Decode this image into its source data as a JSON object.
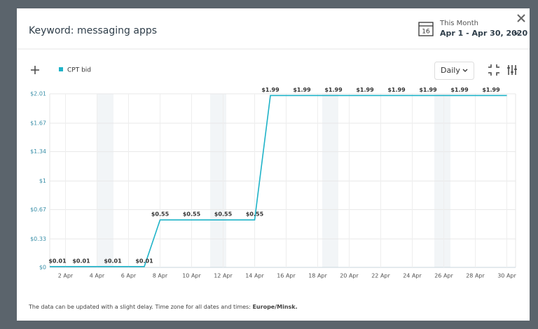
{
  "header": {
    "title": "Keyword: messaging apps",
    "period": "This Month",
    "range": "Apr 1 - Apr 30, 2020",
    "calendar_day": "16"
  },
  "controls": {
    "interval": "Daily"
  },
  "chart_data": {
    "type": "line",
    "categories": [
      null,
      "2 Apr",
      null,
      "4 Apr",
      null,
      "6 Apr",
      null,
      "8 Apr",
      null,
      "10 Apr",
      null,
      "12 Apr",
      null,
      "14 Apr",
      null,
      "16 Apr",
      null,
      "18 Apr",
      null,
      "20 Apr",
      null,
      "22 Apr",
      null,
      "24 Apr",
      null,
      "26 Apr",
      null,
      "28 Apr",
      null,
      "30 Apr"
    ],
    "series": [
      {
        "name": "CPT bid",
        "color": "#1fb3c8",
        "values": [
          0.01,
          0.01,
          0.01,
          0.01,
          0.01,
          0.01,
          0.01,
          0.55,
          0.55,
          0.55,
          0.55,
          0.55,
          0.55,
          0.55,
          1.99,
          1.99,
          1.99,
          1.99,
          1.99,
          1.99,
          1.99,
          1.99,
          1.99,
          1.99,
          1.99,
          1.99,
          1.99,
          1.99,
          1.99,
          1.99
        ],
        "value_labels": [
          "$0.01",
          null,
          "$0.01",
          null,
          "$0.01",
          null,
          "$0.01",
          "$0.55",
          null,
          "$0.55",
          null,
          "$0.55",
          null,
          "$0.55",
          "$1.99",
          null,
          "$1.99",
          null,
          "$1.99",
          null,
          "$1.99",
          null,
          "$1.99",
          null,
          "$1.99",
          null,
          "$1.99",
          null,
          "$1.99",
          null
        ]
      }
    ],
    "ylim": [
      0,
      2.01
    ],
    "yticks": [
      {
        "value": 0,
        "label": "$0"
      },
      {
        "value": 0.33,
        "label": "$0.33"
      },
      {
        "value": 0.67,
        "label": "$0.67"
      },
      {
        "value": 1,
        "label": "$1"
      },
      {
        "value": 1.34,
        "label": "$1.34"
      },
      {
        "value": 1.67,
        "label": "$1.67"
      },
      {
        "value": 2.01,
        "label": "$2.01"
      }
    ],
    "grid": true,
    "legend": "top-left"
  },
  "footer": {
    "text": "The data can be updated with a slight delay. Time zone for all dates and times:",
    "zone": "Europe/Minsk."
  }
}
